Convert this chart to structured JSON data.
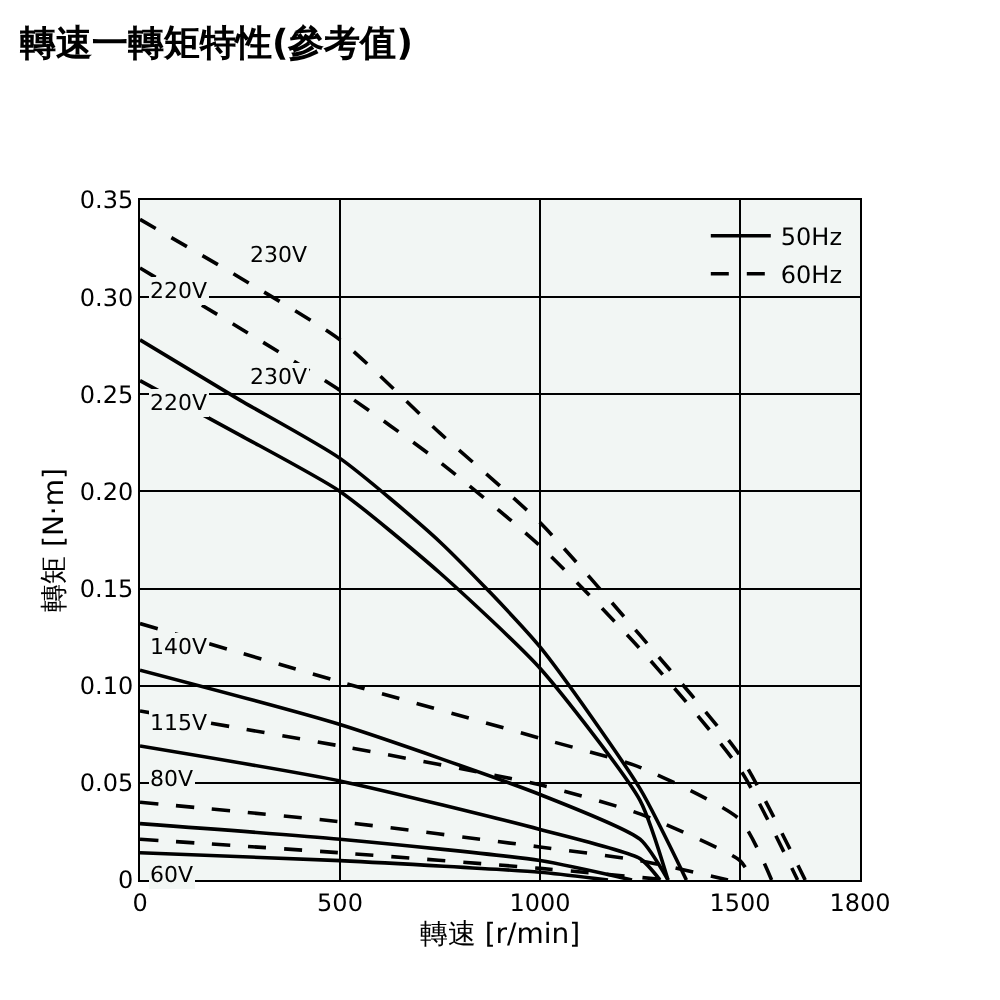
{
  "chart_data": {
    "type": "line",
    "title": "轉速一轉矩特性(參考值)",
    "xlabel": "轉速 [r/min]",
    "ylabel": "轉矩 [N·m]",
    "xlim": [
      0,
      1800
    ],
    "xticks": [
      0,
      500,
      1000,
      1500,
      1800
    ],
    "ylim": [
      0,
      0.35
    ],
    "yticks": [
      0,
      {
        "value": 0.05,
        "label": "0.05"
      },
      {
        "value": 0.1,
        "label": "0.10"
      },
      {
        "value": 0.15,
        "label": "0.15"
      },
      {
        "value": 0.2,
        "label": "0.20"
      },
      {
        "value": 0.25,
        "label": "0.25"
      },
      {
        "value": 0.3,
        "label": "0.30"
      },
      {
        "value": 0.35,
        "label": "0.35"
      }
    ],
    "grid": true,
    "legend": "top right",
    "marker": "none",
    "series": [
      {
        "name": "50Hz",
        "color": "#000000",
        "line_style": "solid",
        "x": [
          0,
          250,
          500,
          750,
          1000,
          1250,
          1366
        ],
        "values": [
          0.278,
          0.247,
          0.217,
          0.174,
          0.12,
          0.047,
          0
        ]
      },
      {
        "color": "#000000",
        "line_style": "solid",
        "x": [
          0,
          250,
          500,
          750,
          1000,
          1250,
          1320
        ],
        "values": [
          0.257,
          0.229,
          0.2,
          0.158,
          0.109,
          0.041,
          0
        ]
      },
      {
        "color": "#000000",
        "line_style": "solid",
        "x": [
          0,
          500,
          1000,
          1250,
          1320
        ],
        "values": [
          0.108,
          0.08,
          0.044,
          0.021,
          0
        ]
      },
      {
        "color": "#000000",
        "line_style": "solid",
        "x": [
          0,
          500,
          1000,
          1250,
          1300
        ],
        "values": [
          0.069,
          0.051,
          0.026,
          0.011,
          0
        ]
      },
      {
        "color": "#000000",
        "line_style": "solid",
        "x": [
          0,
          500,
          1000,
          1230
        ],
        "values": [
          0.029,
          0.021,
          0.01,
          0
        ]
      },
      {
        "color": "#000000",
        "line_style": "solid",
        "x": [
          0,
          500,
          1000,
          1170
        ],
        "values": [
          0.014,
          0.01,
          0.004,
          0
        ]
      },
      {
        "name": "60Hz",
        "color": "#000000",
        "line_style": "dashed",
        "x": [
          0,
          250,
          500,
          750,
          1000,
          1250,
          1500,
          1663
        ],
        "values": [
          0.34,
          0.31,
          0.278,
          0.23,
          0.184,
          0.126,
          0.064,
          0
        ]
      },
      {
        "color": "#000000",
        "line_style": "dashed",
        "x": [
          0,
          250,
          500,
          750,
          1000,
          1250,
          1500,
          1644
        ],
        "values": [
          0.315,
          0.284,
          0.252,
          0.215,
          0.172,
          0.119,
          0.057,
          0
        ]
      },
      {
        "color": "#000000",
        "line_style": "dashed",
        "x": [
          0,
          500,
          1000,
          1250,
          1500,
          1579
        ],
        "values": [
          0.132,
          0.102,
          0.073,
          0.058,
          0.031,
          0
        ]
      },
      {
        "color": "#000000",
        "line_style": "dashed",
        "x": [
          0,
          500,
          1000,
          1250,
          1500,
          1530
        ],
        "values": [
          0.087,
          0.069,
          0.049,
          0.034,
          0.01,
          0
        ]
      },
      {
        "color": "#000000",
        "line_style": "dashed",
        "x": [
          0,
          500,
          1000,
          1250,
          1470
        ],
        "values": [
          0.04,
          0.03,
          0.017,
          0.01,
          0
        ]
      },
      {
        "color": "#000000",
        "line_style": "dashed",
        "x": [
          0,
          500,
          1000,
          1320
        ],
        "values": [
          0.021,
          0.014,
          0.006,
          0
        ]
      }
    ],
    "annotations": [
      "230V",
      "220V",
      "230V",
      "220V",
      "140V",
      "115V",
      "80V",
      "60V"
    ]
  }
}
